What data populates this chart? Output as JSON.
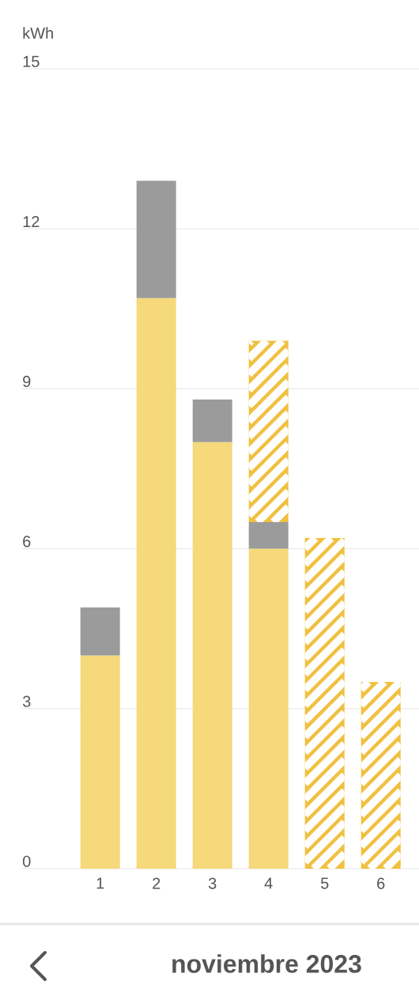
{
  "chart_data": {
    "type": "bar",
    "title": "noviembre 2023",
    "ylabel": "kWh",
    "stacked": true,
    "grid": "y",
    "categories": [
      "1",
      "2",
      "3",
      "4",
      "5",
      "6"
    ],
    "series": [
      {
        "color": "#f5d97a",
        "values": [
          4.0,
          10.7,
          8.0,
          6.0,
          null,
          null
        ]
      },
      {
        "color": "#9b9b9b",
        "values": [
          0.9,
          2.2,
          0.8,
          0.5,
          null,
          null
        ]
      },
      {
        "color": "#f0c040",
        "values": [
          null,
          null,
          null,
          3.4,
          6.2,
          3.5
        ]
      }
    ],
    "ylim": [
      0,
      15
    ],
    "yticks": [
      0,
      3,
      6,
      9,
      12,
      15
    ]
  }
}
